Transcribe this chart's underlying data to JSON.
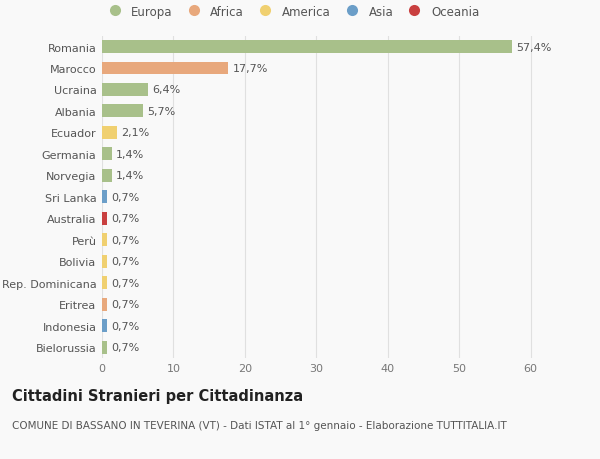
{
  "countries": [
    "Romania",
    "Marocco",
    "Ucraina",
    "Albania",
    "Ecuador",
    "Germania",
    "Norvegia",
    "Sri Lanka",
    "Australia",
    "Perù",
    "Bolivia",
    "Rep. Dominicana",
    "Eritrea",
    "Indonesia",
    "Bielorussia"
  ],
  "values": [
    57.4,
    17.7,
    6.4,
    5.7,
    2.1,
    1.4,
    1.4,
    0.7,
    0.7,
    0.7,
    0.7,
    0.7,
    0.7,
    0.7,
    0.7
  ],
  "labels": [
    "57,4%",
    "17,7%",
    "6,4%",
    "5,7%",
    "2,1%",
    "1,4%",
    "1,4%",
    "0,7%",
    "0,7%",
    "0,7%",
    "0,7%",
    "0,7%",
    "0,7%",
    "0,7%",
    "0,7%"
  ],
  "continents": [
    "Europa",
    "Africa",
    "Europa",
    "Europa",
    "America",
    "Europa",
    "Europa",
    "Asia",
    "Oceania",
    "America",
    "America",
    "America",
    "Africa",
    "Asia",
    "Europa"
  ],
  "continent_colors": {
    "Europa": "#a8c08a",
    "Africa": "#e8a87c",
    "America": "#f0d070",
    "Asia": "#6b9ec8",
    "Oceania": "#c94040"
  },
  "legend_items": [
    "Europa",
    "Africa",
    "America",
    "Asia",
    "Oceania"
  ],
  "legend_colors": [
    "#a8c08a",
    "#e8a87c",
    "#f0d070",
    "#6b9ec8",
    "#c94040"
  ],
  "title": "Cittadini Stranieri per Cittadinanza",
  "subtitle": "COMUNE DI BASSANO IN TEVERINA (VT) - Dati ISTAT al 1° gennaio - Elaborazione TUTTITALIA.IT",
  "xlim": [
    0,
    63
  ],
  "xticks": [
    0,
    10,
    20,
    30,
    40,
    50,
    60
  ],
  "background_color": "#f9f9f9",
  "grid_color": "#e0e0e0",
  "bar_height": 0.6,
  "title_fontsize": 10.5,
  "subtitle_fontsize": 7.5,
  "tick_fontsize": 8,
  "label_fontsize": 8,
  "legend_fontsize": 8.5
}
